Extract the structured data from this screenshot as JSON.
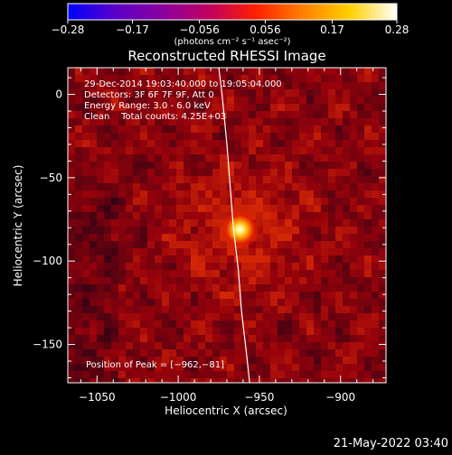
{
  "chart_data": {
    "type": "heatmap",
    "title": "Reconstructed RHESSI Image",
    "xlabel": "Heliocentric X (arcsec)",
    "ylabel": "Heliocentric Y (arcsec)",
    "xlim": [
      -1068,
      -872
    ],
    "ylim": [
      -173,
      16
    ],
    "x_ticks": [
      -1050,
      -1000,
      -950,
      -900
    ],
    "x_tick_labels": [
      "−1050",
      "−1000",
      "−950",
      "−900"
    ],
    "y_ticks": [
      0,
      -50,
      -100,
      -150
    ],
    "y_tick_labels": [
      "0",
      "−50",
      "−100",
      "−150"
    ],
    "colorbar": {
      "min": -0.28,
      "max": 0.28,
      "ticks": [
        -0.28,
        -0.17,
        -0.056,
        0.056,
        0.17,
        0.28
      ],
      "tick_labels": [
        "−0.28",
        "−0.17",
        "−0.056",
        "0.056",
        "0.17",
        "0.28"
      ],
      "unit_label": "(photons cm⁻² s⁻¹ asec⁻²)",
      "colormap": [
        "#0000ff",
        "#5a00c8",
        "#8a00a0",
        "#c00060",
        "#ff2000",
        "#ff8000",
        "#ffd000",
        "#ffffff"
      ]
    },
    "annotations": [
      "29-Dec-2014 19:03:40.000 to 19:05:04.000",
      "Detectors: 3F 6F 7F 9F, Att 0",
      "Energy Range: 3.0 - 6.0 keV",
      "Clean    Total counts: 4.25E+03"
    ],
    "peak_label": "Position of Peak = [−962,−81]",
    "peak": {
      "x": -962,
      "y": -81
    },
    "limb_curve": [
      [
        -975,
        16
      ],
      [
        -973,
        0
      ],
      [
        -970,
        -30
      ],
      [
        -968,
        -55
      ],
      [
        -966,
        -80
      ],
      [
        -963,
        -105
      ],
      [
        -961,
        -130
      ],
      [
        -958,
        -155
      ],
      [
        -956,
        -173
      ]
    ],
    "grid": false
  },
  "footer": {
    "timestamp": "21-May-2022 03:40"
  }
}
